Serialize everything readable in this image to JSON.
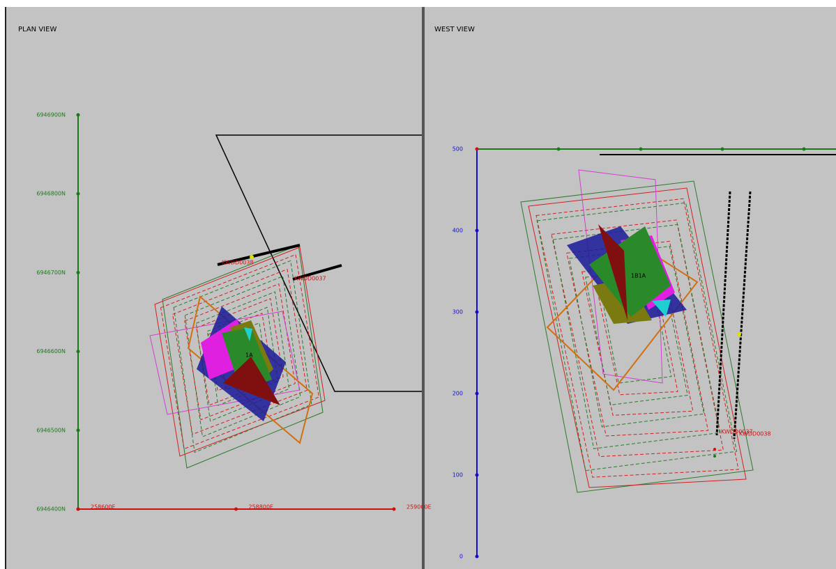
{
  "plan_view": {
    "title": "PLAN VIEW",
    "northing_labels": [
      "6946900N",
      "6946800N",
      "6946700N",
      "6946600N",
      "6946500N",
      "6946400N"
    ],
    "easting_labels": [
      "258600E",
      "258800E",
      "259000E"
    ],
    "hole_labels": [
      "KWDD0038",
      "KWDD0037"
    ],
    "shape_labels": [
      "1A"
    ]
  },
  "west_view": {
    "title": "WEST VIEW",
    "elevation_labels": [
      500,
      400,
      300,
      200,
      100,
      0
    ],
    "hole_labels": [
      "KWDD0037",
      "KWDD0038"
    ],
    "shape_labels": [
      "1B1A"
    ]
  }
}
